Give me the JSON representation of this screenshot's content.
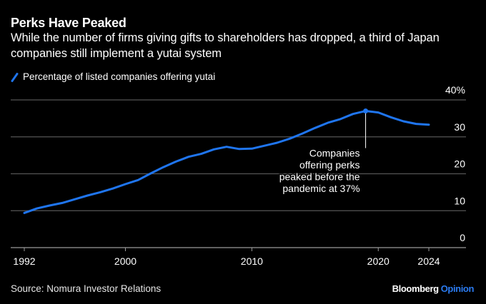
{
  "header": {
    "title": "Perks Have Peaked",
    "subtitle": "While the number of firms giving gifts to shareholders has dropped, a third of Japan companies still implement a yutai system"
  },
  "legend": {
    "icon": "diagonal-line-icon",
    "label": "Percentage of listed companies offering yutai"
  },
  "footer": {
    "source": "Source: Nomura Investor Relations",
    "brand_main": "Bloomberg",
    "brand_accent": "Opinion"
  },
  "colors": {
    "background": "#000000",
    "line": "#1f75ef",
    "grid": "#555555",
    "text": "#ffffff",
    "brand_accent": "#2b7bf0"
  },
  "chart_data": {
    "type": "line",
    "title": "Perks Have Peaked",
    "subtitle": "While the number of firms giving gifts to shareholders has dropped, a third of Japan companies still implement a yutai system",
    "xlabel": "",
    "ylabel": "",
    "x_ticks": [
      1992,
      2000,
      2010,
      2020,
      2024
    ],
    "x_tick_labels": [
      "1992",
      "2000",
      "2010",
      "2020",
      "2024"
    ],
    "xlim": [
      1992,
      2024
    ],
    "y_ticks": [
      0,
      10,
      20,
      30,
      40
    ],
    "y_tick_labels": [
      "0",
      "10",
      "20",
      "30",
      "40%"
    ],
    "ylim": [
      0,
      40
    ],
    "y_axis_side": "right",
    "grid": true,
    "legend_position": "top-left",
    "series": [
      {
        "name": "Percentage of listed companies offering yutai",
        "x": [
          1992,
          1993,
          1994,
          1995,
          1996,
          1997,
          1998,
          1999,
          2000,
          2001,
          2002,
          2003,
          2004,
          2005,
          2006,
          2007,
          2008,
          2009,
          2010,
          2011,
          2012,
          2013,
          2014,
          2015,
          2016,
          2017,
          2018,
          2019,
          2020,
          2021,
          2022,
          2023,
          2024
        ],
        "values": [
          9.4,
          10.6,
          11.4,
          12.1,
          13.1,
          14.1,
          15.0,
          16.0,
          17.2,
          18.3,
          20.1,
          21.8,
          23.3,
          24.6,
          25.4,
          26.6,
          27.3,
          26.7,
          26.8,
          27.6,
          28.4,
          29.5,
          30.9,
          32.4,
          33.8,
          34.8,
          36.2,
          37.0,
          36.6,
          35.3,
          34.2,
          33.5,
          33.3
        ]
      }
    ],
    "annotations": [
      {
        "x": 2019,
        "y": 37.0,
        "text_lines": [
          "Companies",
          "offering perks",
          "peaked before the",
          "pandemic at 37%"
        ]
      }
    ]
  }
}
